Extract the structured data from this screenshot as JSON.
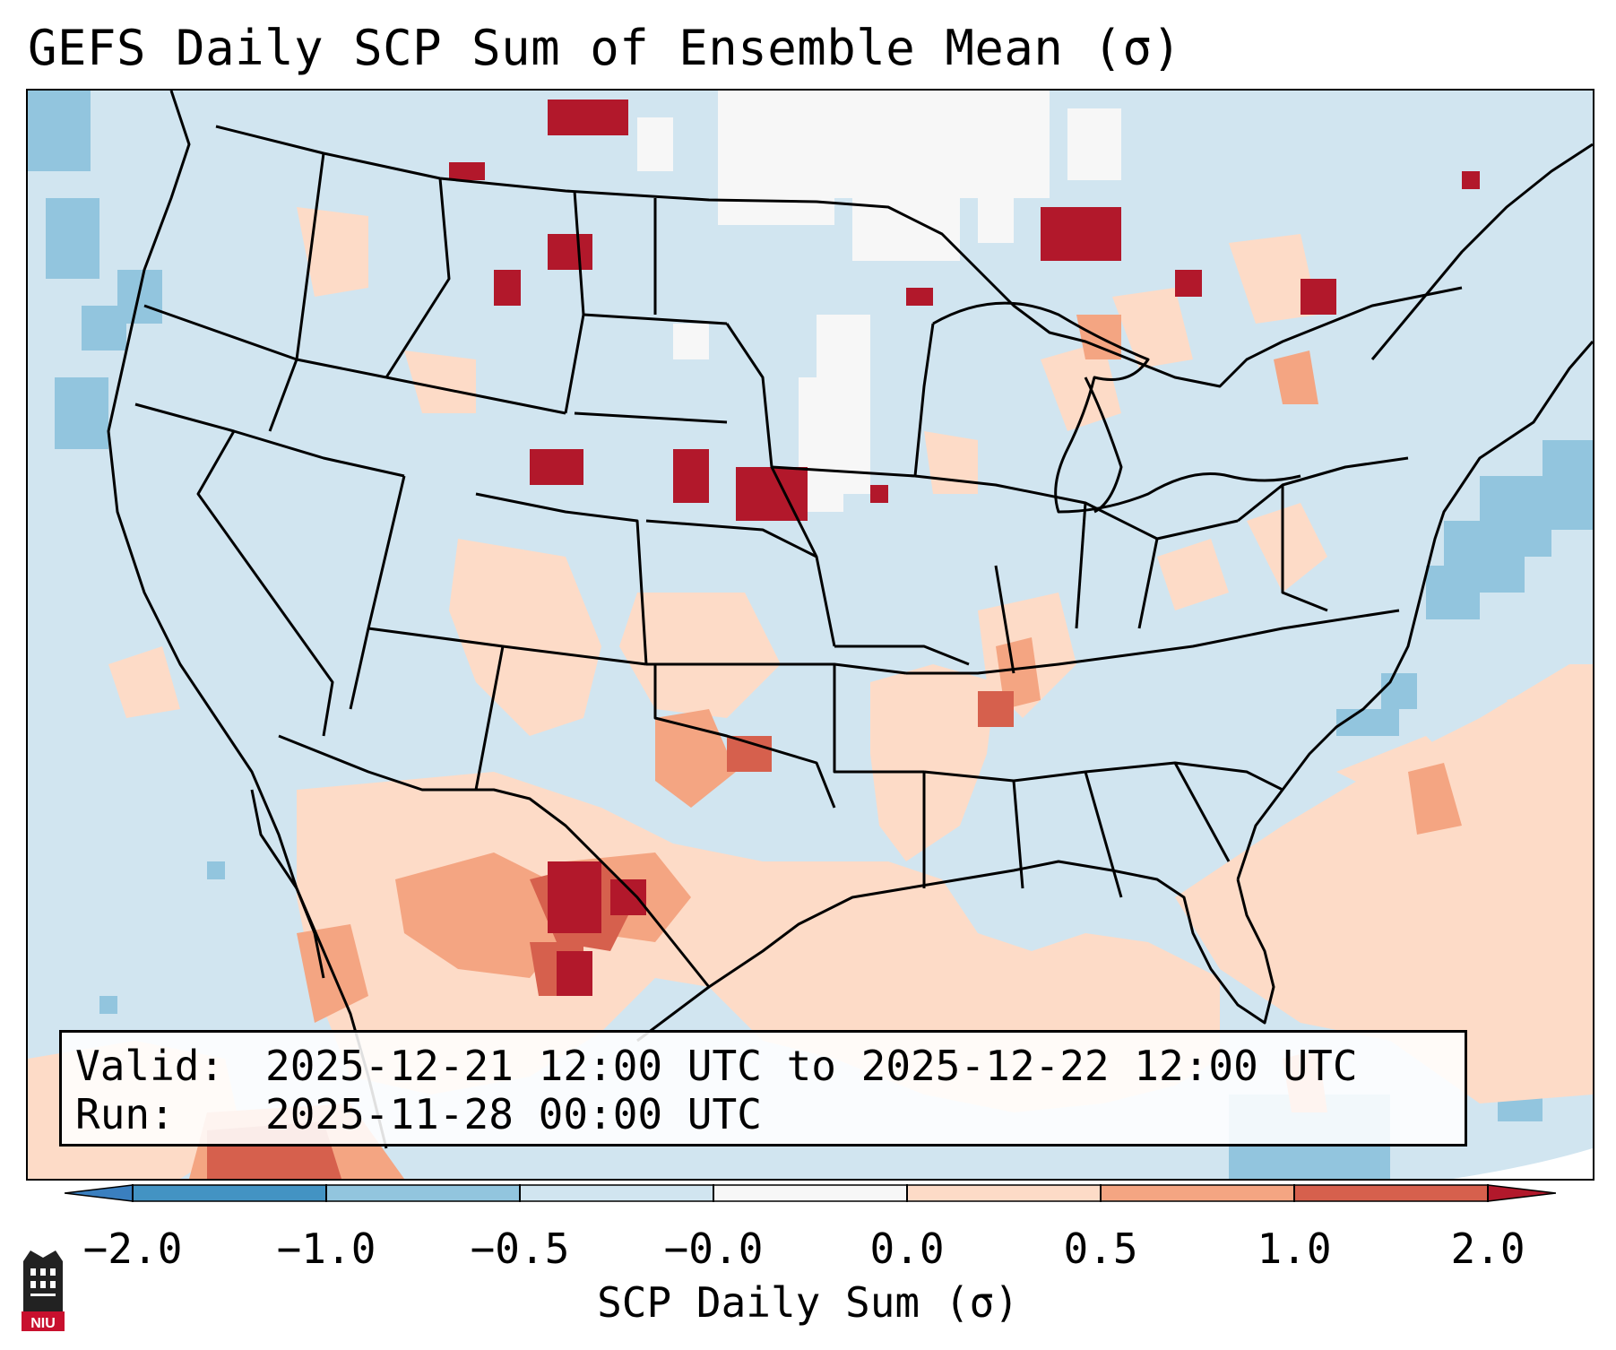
{
  "title": "GEFS Daily SCP Sum of Ensemble Mean (σ)",
  "info": {
    "valid_label": "Valid:",
    "valid_value": "2025-12-21 12:00 UTC to 2025-12-22 12:00 UTC",
    "run_label": "Run:",
    "run_value": "2025-11-28 00:00 UTC"
  },
  "colorbar": {
    "label": "SCP Daily Sum (σ)",
    "ticks": [
      "−2.0",
      "−1.0",
      "−0.5",
      "−0.0",
      "0.0",
      "0.5",
      "1.0",
      "2.0"
    ],
    "colors": {
      "extend_low": "#3a7fbf",
      "bin_-2_-1": "#4393c3",
      "bin_-1_-0.5": "#92c5de",
      "bin_-0.5_0": "#d1e5f0",
      "bin_0_0": "#f7f7f7",
      "bin_0_0.5": "#fddbc7",
      "bin_0.5_1": "#f4a582",
      "bin_1_2": "#d6604d",
      "extend_high": "#b2182b"
    }
  },
  "logo": {
    "text": "NIU",
    "accent": "#c8102e"
  },
  "map": {
    "background_color": "#d1e5f0",
    "void_color": "#ffffff",
    "border_color": "#000000"
  }
}
